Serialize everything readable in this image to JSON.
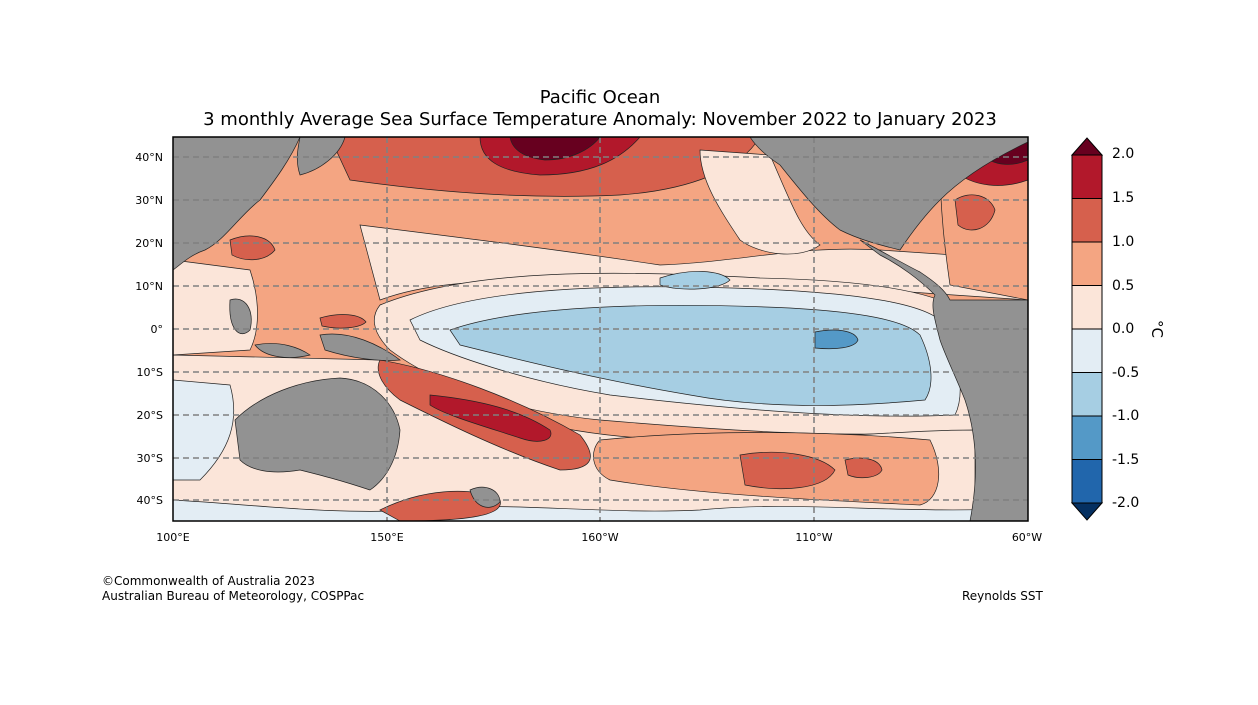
{
  "title": "Pacific Ocean",
  "subtitle": "3 monthly Average Sea Surface Temperature Anomaly: November 2022 to January 2023",
  "lat_labels": [
    "40°N",
    "30°N",
    "20°N",
    "10°N",
    "0°",
    "10°S",
    "20°S",
    "30°S",
    "40°S"
  ],
  "lon_labels": [
    "100°E",
    "150°E",
    "160°W",
    "110°W",
    "60°W"
  ],
  "colorbar": {
    "unit": "°C",
    "ticks": [
      "2.0",
      "1.5",
      "1.0",
      "0.5",
      "0.0",
      "-0.5",
      "-1.0",
      "-1.5",
      "-2.0"
    ],
    "colors": [
      "#67001f",
      "#b2182b",
      "#d6604d",
      "#f4a582",
      "#fbe5d9",
      "#e3edf4",
      "#a6cee3",
      "#5499c7",
      "#2166ac",
      "#053061"
    ]
  },
  "credits": {
    "line1": "©Commonwealth of Australia 2023",
    "line2": "Australian Bureau of Meteorology, COSPPac",
    "source": "Reynolds SST"
  }
}
